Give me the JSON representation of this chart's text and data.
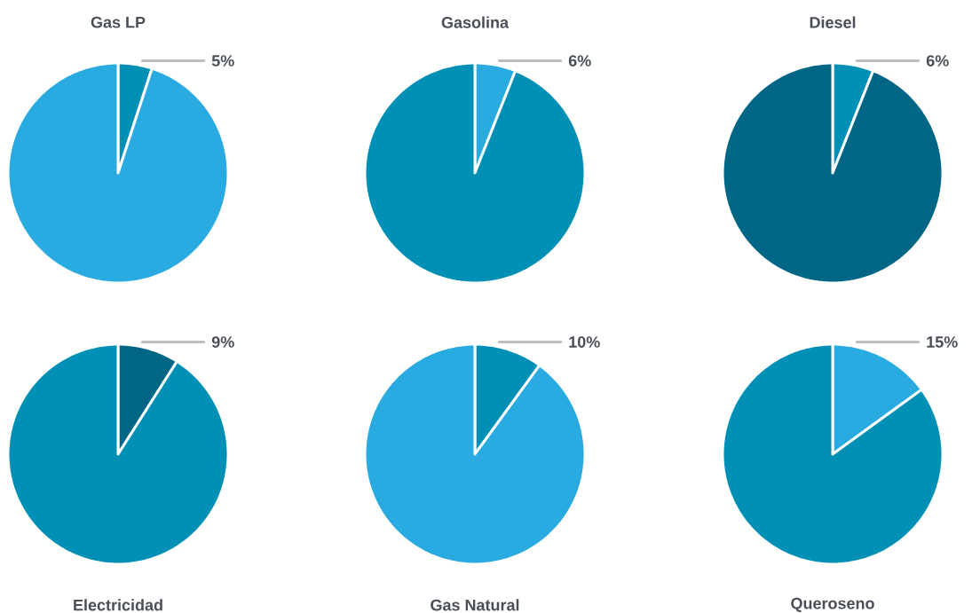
{
  "chart_data": [
    {
      "type": "pie",
      "title": "Gas LP",
      "categories": [
        null,
        null
      ],
      "values": [
        5,
        95
      ],
      "colors": [
        "#0090b6",
        "#29aae1"
      ],
      "value_labels": [
        "5%",
        null
      ]
    },
    {
      "type": "pie",
      "title": "Gasolina",
      "categories": [
        null,
        null
      ],
      "values": [
        6,
        94
      ],
      "colors": [
        "#29aae1",
        "#0090b6"
      ],
      "value_labels": [
        "6%",
        null
      ]
    },
    {
      "type": "pie",
      "title": "Diesel",
      "categories": [
        null,
        null
      ],
      "values": [
        6,
        94
      ],
      "colors": [
        "#0090b6",
        "#006685"
      ],
      "value_labels": [
        "6%",
        null
      ]
    },
    {
      "type": "pie",
      "title": "Electricidad",
      "categories": [
        null,
        null
      ],
      "values": [
        9,
        91
      ],
      "colors": [
        "#006685",
        "#0090b6"
      ],
      "value_labels": [
        "9%",
        null
      ]
    },
    {
      "type": "pie",
      "title": "Gas Natural",
      "categories": [
        null,
        null
      ],
      "values": [
        10,
        90
      ],
      "colors": [
        "#0090b6",
        "#29aae1"
      ],
      "value_labels": [
        "10%",
        null
      ]
    },
    {
      "type": "pie",
      "title": "Queroseno",
      "categories": [
        null,
        null
      ],
      "values": [
        15,
        85
      ],
      "colors": [
        "#29aae1",
        "#0090b6"
      ],
      "value_labels": [
        "15%",
        null
      ]
    }
  ]
}
